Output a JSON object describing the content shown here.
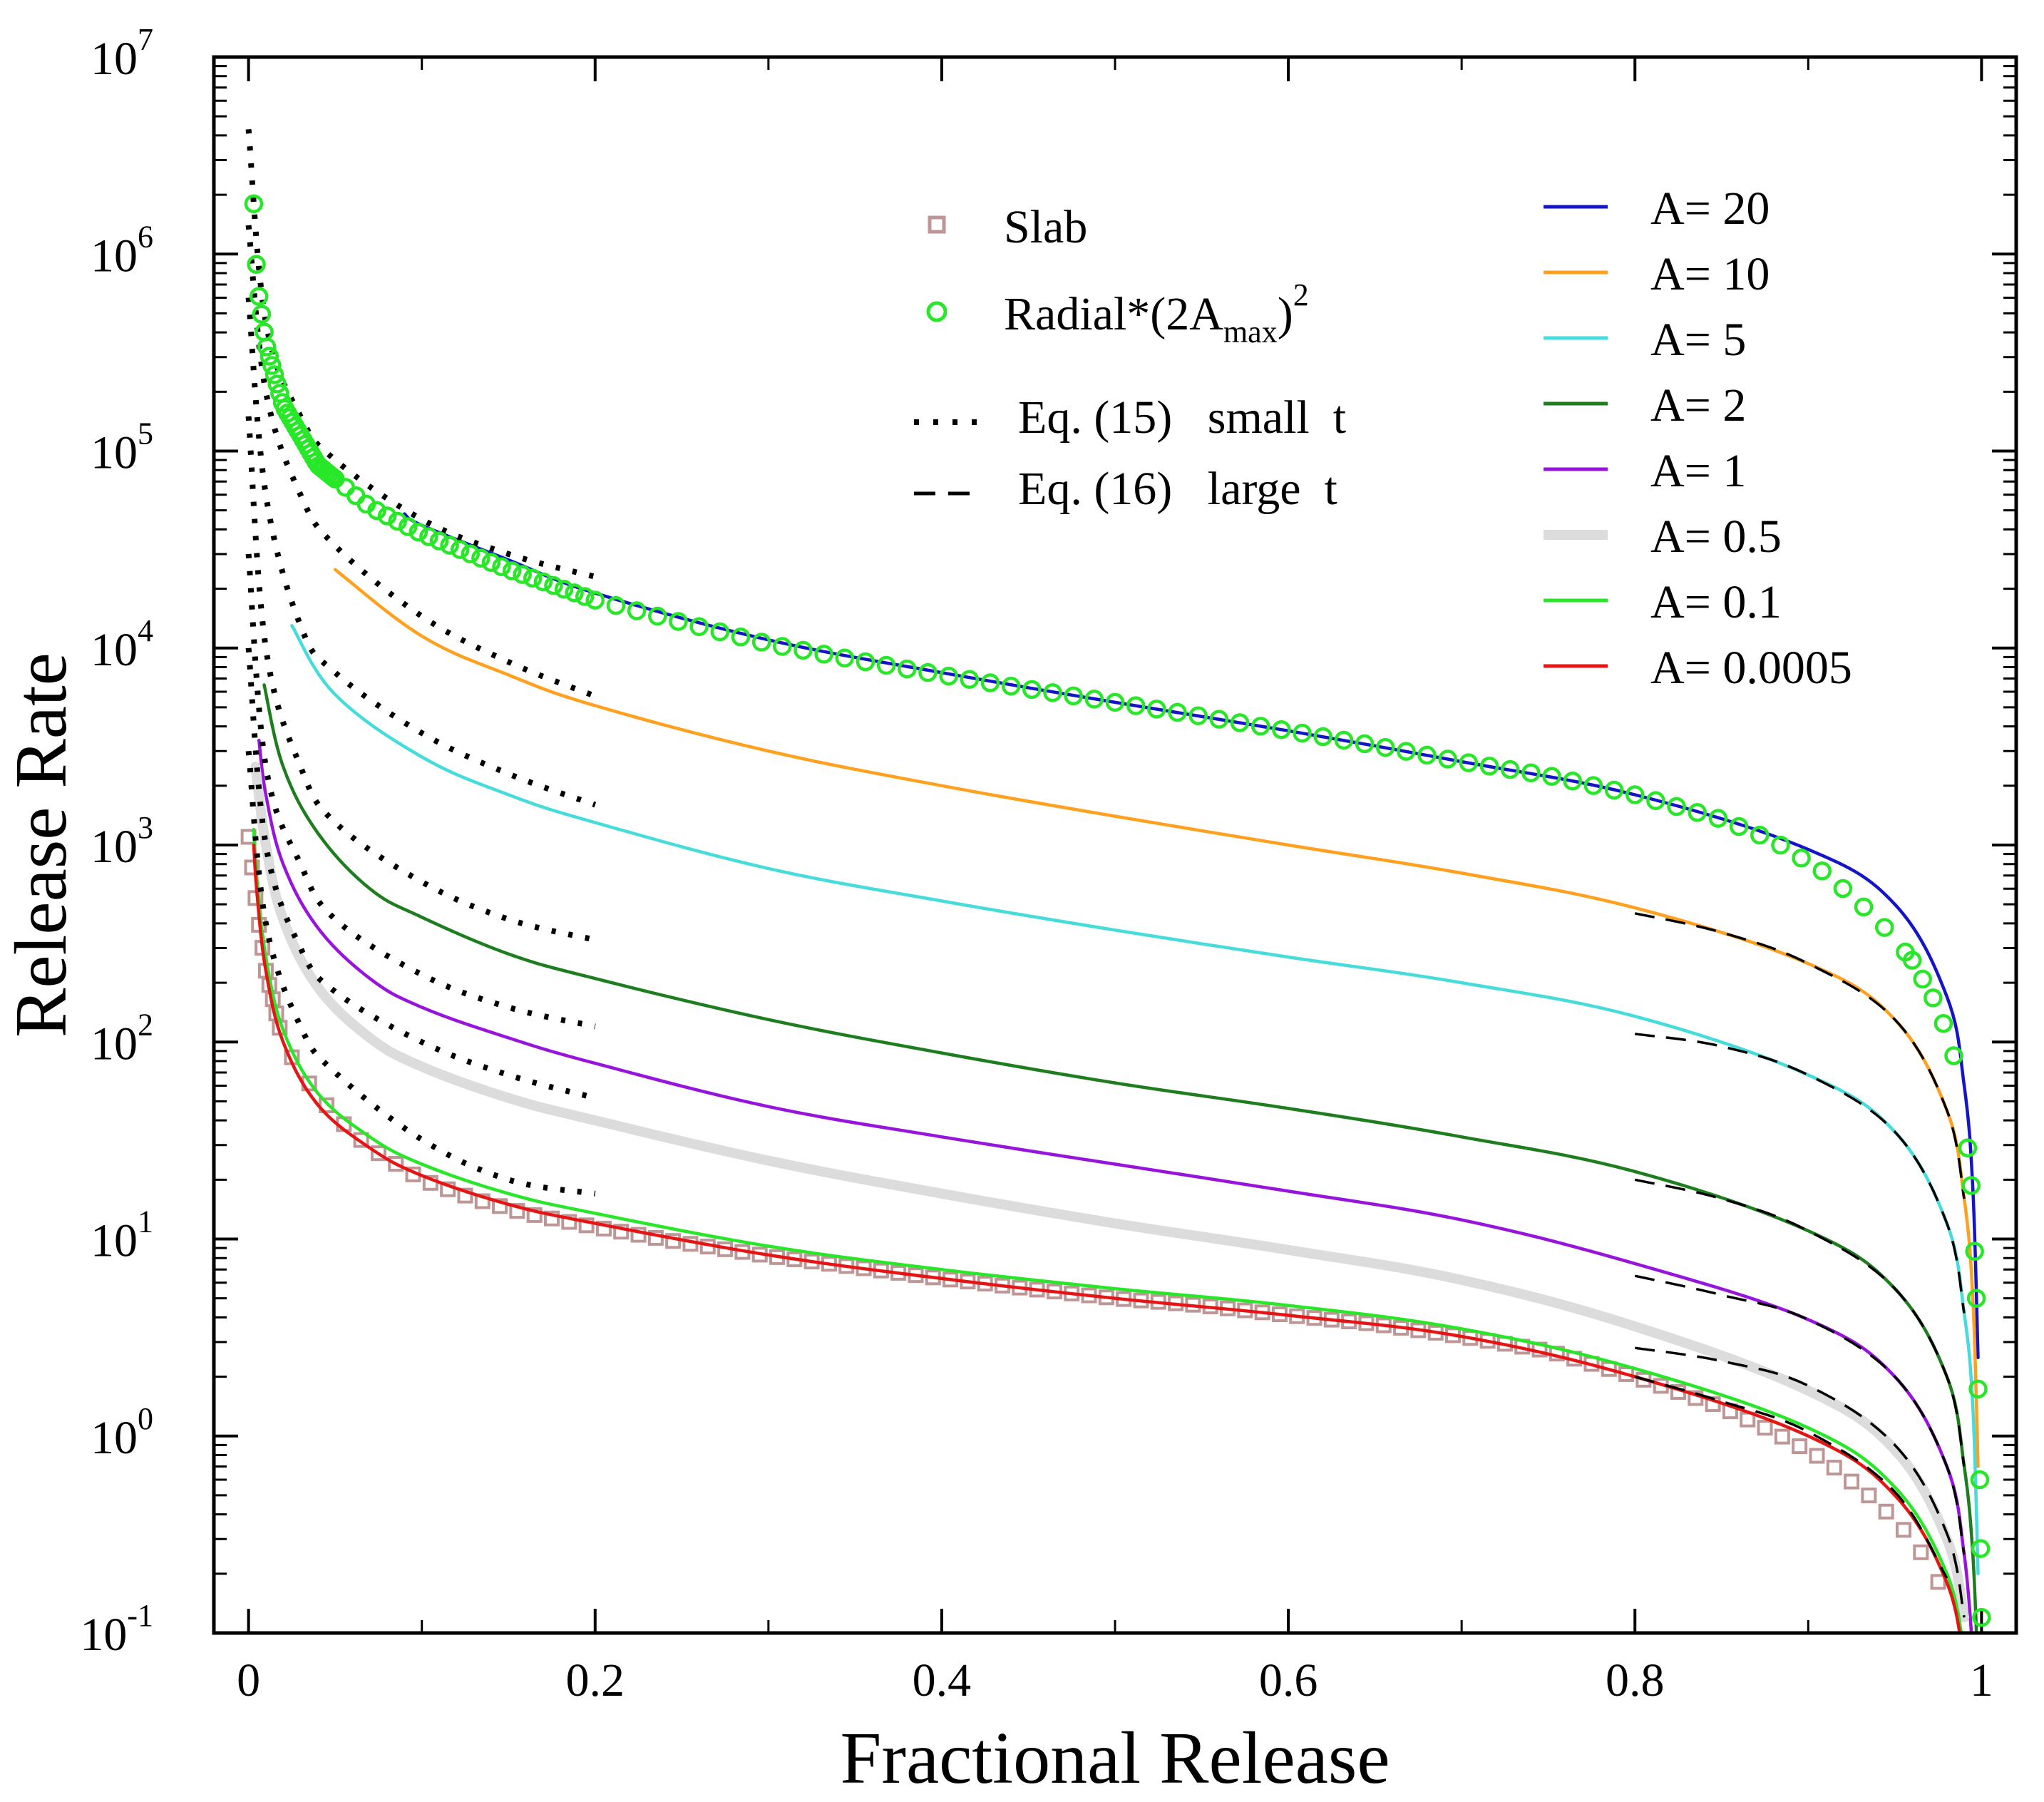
{
  "chart_data": {
    "type": "line",
    "title": "",
    "xlabel": "Fractional Release",
    "ylabel": "Release Rate",
    "xlim": [
      -0.02,
      1.02
    ],
    "ylim_log10": [
      -1,
      7
    ],
    "y_scale": "log",
    "x_ticks": [
      "0",
      "0.2",
      "0.4",
      "0.6",
      "0.8",
      "1"
    ],
    "x_tick_values": [
      0,
      0.2,
      0.4,
      0.6,
      0.8,
      1
    ],
    "y_ticks": [
      {
        "base": "10",
        "exp": "-1",
        "value": -1
      },
      {
        "base": "10",
        "exp": "0",
        "value": 0
      },
      {
        "base": "10",
        "exp": "1",
        "value": 1
      },
      {
        "base": "10",
        "exp": "2",
        "value": 2
      },
      {
        "base": "10",
        "exp": "3",
        "value": 3
      },
      {
        "base": "10",
        "exp": "4",
        "value": 4
      },
      {
        "base": "10",
        "exp": "5",
        "value": 5
      },
      {
        "base": "10",
        "exp": "6",
        "value": 6
      },
      {
        "base": "10",
        "exp": "7",
        "value": 7
      }
    ],
    "series": [
      {
        "name": "A= 20",
        "A": 20,
        "color": "#1414c8",
        "x": [
          0.09,
          0.1,
          0.15,
          0.2,
          0.3,
          0.4,
          0.5,
          0.6,
          0.7,
          0.8,
          0.9,
          0.95,
          0.98,
          0.99,
          0.995,
          0.998
        ],
        "y": [
          48000,
          42000,
          28000,
          19000,
          11000,
          7500,
          5300,
          3800,
          2650,
          1800,
          950,
          500,
          170,
          60,
          18,
          2.5
        ]
      },
      {
        "name": "A= 10",
        "A": 10,
        "color": "#ffa01e",
        "x": [
          0.05,
          0.1,
          0.15,
          0.2,
          0.3,
          0.4,
          0.5,
          0.6,
          0.7,
          0.8,
          0.9,
          0.95,
          0.98,
          0.99,
          0.995,
          0.998
        ],
        "y": [
          25000,
          11500,
          7300,
          5100,
          3000,
          2000,
          1400,
          1000,
          720,
          480,
          250,
          130,
          45,
          16,
          5,
          0.7
        ]
      },
      {
        "name": "A= 5",
        "A": 5,
        "color": "#46dcdc",
        "x": [
          0.025,
          0.05,
          0.1,
          0.15,
          0.2,
          0.3,
          0.4,
          0.5,
          0.6,
          0.7,
          0.8,
          0.9,
          0.95,
          0.98,
          0.99,
          0.995,
          0.998
        ],
        "y": [
          13000,
          5800,
          2800,
          1800,
          1300,
          760,
          520,
          370,
          270,
          200,
          135,
          68,
          35,
          12,
          4.2,
          1.4,
          0.2
        ]
      },
      {
        "name": "A= 2",
        "A": 2,
        "color": "#1e7d1e",
        "x": [
          0.009,
          0.02,
          0.04,
          0.07,
          0.1,
          0.15,
          0.2,
          0.3,
          0.4,
          0.5,
          0.6,
          0.7,
          0.8,
          0.9,
          0.95,
          0.98,
          0.99,
          0.995,
          0.998
        ],
        "y": [
          6500,
          2500,
          1150,
          600,
          430,
          280,
          210,
          130,
          88,
          62,
          46,
          33,
          22,
          11,
          5.6,
          2,
          0.7,
          0.25,
          0.06
        ]
      },
      {
        "name": "A= 1",
        "A": 1,
        "color": "#9614dc",
        "x": [
          0.006,
          0.01,
          0.02,
          0.04,
          0.07,
          0.1,
          0.15,
          0.2,
          0.3,
          0.4,
          0.5,
          0.6,
          0.7,
          0.8,
          0.9,
          0.95,
          0.98,
          0.99,
          0.995
        ],
        "y": [
          3400,
          1800,
          800,
          380,
          210,
          150,
          105,
          78,
          47,
          33,
          24,
          17.5,
          12.5,
          7.5,
          3.9,
          2,
          0.7,
          0.25,
          0.08
        ]
      },
      {
        "name": "A= 0.5",
        "A": 0.5,
        "color": "#dcdcdc",
        "x": [
          0.004,
          0.01,
          0.02,
          0.04,
          0.07,
          0.1,
          0.15,
          0.2,
          0.3,
          0.4,
          0.5,
          0.6,
          0.7,
          0.8,
          0.9,
          0.95,
          0.98,
          0.99
        ],
        "y": [
          2500,
          1000,
          420,
          190,
          105,
          75,
          52,
          40,
          25,
          17,
          12,
          8.8,
          6.2,
          3.6,
          1.7,
          0.85,
          0.3,
          0.12
        ]
      },
      {
        "name": "A= 0.1",
        "A": 0.1,
        "color": "#28e628",
        "x": [
          0.003,
          0.005,
          0.01,
          0.02,
          0.04,
          0.07,
          0.1,
          0.15,
          0.2,
          0.3,
          0.4,
          0.5,
          0.6,
          0.7,
          0.8,
          0.9,
          0.95,
          0.98,
          0.99
        ],
        "y": [
          1200,
          650,
          270,
          115,
          55,
          33,
          24,
          17,
          13.5,
          9.2,
          7,
          5.6,
          4.6,
          3.5,
          2.2,
          1.1,
          0.55,
          0.2,
          0.08
        ]
      },
      {
        "name": "A= 0.0005",
        "A": 0.0005,
        "color": "#e61414",
        "x": [
          0.003,
          0.005,
          0.01,
          0.02,
          0.04,
          0.07,
          0.1,
          0.15,
          0.2,
          0.3,
          0.4,
          0.5,
          0.6,
          0.7,
          0.8,
          0.9,
          0.95,
          0.98,
          0.99
        ],
        "y": [
          1000,
          550,
          230,
          100,
          48,
          29,
          21,
          15,
          12,
          8.3,
          6.3,
          5,
          4.1,
          3.2,
          2,
          1,
          0.5,
          0.18,
          0.07
        ]
      }
    ],
    "markers": [
      {
        "name": "Slab",
        "marker": "square",
        "color": "#be9696",
        "x": [
          0.0,
          0.005,
          0.01,
          0.02,
          0.03,
          0.05,
          0.07,
          0.1,
          0.13,
          0.16,
          0.2,
          0.25,
          0.3,
          0.35,
          0.4,
          0.45,
          0.5,
          0.55,
          0.6,
          0.65,
          0.7,
          0.75,
          0.8,
          0.85,
          0.88,
          0.91,
          0.94,
          0.96,
          0.97,
          0.98,
          0.985
        ],
        "y": [
          1100,
          450,
          230,
          100,
          70,
          42,
          29,
          20,
          16,
          13.5,
          11.5,
          9.6,
          8.2,
          7.2,
          6.3,
          5.6,
          5,
          4.6,
          4.1,
          3.7,
          3.2,
          2.7,
          2,
          1.4,
          1.05,
          0.75,
          0.46,
          0.3,
          0.22,
          0.15,
          0.11
        ]
      },
      {
        "name": "Radial*(2Amax)^2",
        "marker": "circle",
        "color": "#28e628",
        "x": [
          0.003,
          0.005,
          0.01,
          0.02,
          0.04,
          0.07,
          0.1,
          0.15,
          0.2,
          0.25,
          0.3,
          0.35,
          0.4,
          0.45,
          0.5,
          0.55,
          0.6,
          0.65,
          0.7,
          0.75,
          0.8,
          0.85,
          0.88,
          0.91,
          0.94,
          0.96,
          0.975,
          0.985,
          0.99,
          0.995,
          0.997,
          0.999,
          1.0
        ],
        "y": [
          1800000,
          700000,
          350000,
          170000,
          85000,
          52000,
          38000,
          25000,
          17500,
          13500,
          10500,
          8700,
          7300,
          6200,
          5300,
          4500,
          3800,
          3200,
          2650,
          2250,
          1800,
          1350,
          1050,
          720,
          420,
          260,
          150,
          80,
          45,
          15,
          5,
          0.6,
          0.12
        ]
      }
    ],
    "approximations": [
      {
        "name": "Eq. (15)   small  t",
        "style": "dotted",
        "curves": [
          {
            "x": [
              0.0,
              0.01,
              0.03,
              0.05,
              0.1,
              0.15,
              0.2
            ],
            "y": [
              4300000,
              450000,
              150000,
              90000,
              45000,
              30000,
              23000
            ]
          },
          {
            "x": [
              0.0,
              0.01,
              0.03,
              0.05,
              0.1,
              0.15,
              0.2
            ],
            "y": [
              1400000,
              200000,
              60000,
              33000,
              14500,
              8500,
              5700
            ]
          },
          {
            "x": [
              0.0,
              0.01,
              0.03,
              0.05,
              0.1,
              0.15,
              0.2
            ],
            "y": [
              600000,
              60000,
              13000,
              7500,
              3700,
              2300,
              1600
            ]
          },
          {
            "x": [
              0.0,
              0.01,
              0.03,
              0.05,
              0.1,
              0.15,
              0.2
            ],
            "y": [
              150000,
              10000,
              2500,
              1300,
              650,
              420,
              330
            ]
          },
          {
            "x": [
              0.0,
              0.01,
              0.03,
              0.05,
              0.1,
              0.15,
              0.2
            ],
            "y": [
              30000,
              2500,
              800,
              420,
              220,
              150,
              120
            ]
          },
          {
            "x": [
              0.0,
              0.01,
              0.03,
              0.05,
              0.1,
              0.15,
              0.2
            ],
            "y": [
              10000,
              1000,
              300,
              180,
              100,
              68,
              52
            ]
          },
          {
            "x": [
              0.0,
              0.01,
              0.03,
              0.05,
              0.1,
              0.15,
              0.2
            ],
            "y": [
              3000,
              400,
              120,
              70,
              32,
              20,
              17
            ]
          }
        ]
      },
      {
        "name": "Eq. (16)   large  t",
        "style": "dashed",
        "curves": [
          {
            "x": [
              0.8,
              0.85,
              0.9,
              0.95,
              0.98,
              0.99
            ],
            "y": [
              450,
              360,
              250,
              130,
              45,
              16
            ]
          },
          {
            "x": [
              0.8,
              0.85,
              0.9,
              0.95,
              0.98,
              0.99
            ],
            "y": [
              110,
              95,
              68,
              35,
              12,
              4.2
            ]
          },
          {
            "x": [
              0.8,
              0.85,
              0.9,
              0.95,
              0.98,
              0.99
            ],
            "y": [
              20,
              16,
              11,
              5.6,
              2,
              0.7
            ]
          },
          {
            "x": [
              0.8,
              0.85,
              0.9,
              0.95,
              0.98,
              0.99
            ],
            "y": [
              6.5,
              5.2,
              3.9,
              2,
              0.7,
              0.25
            ]
          },
          {
            "x": [
              0.8,
              0.85,
              0.9,
              0.95,
              0.98,
              0.99
            ],
            "y": [
              2.8,
              2.4,
              1.8,
              0.9,
              0.32,
              0.12
            ]
          },
          {
            "x": [
              0.8,
              0.85,
              0.9,
              0.95,
              0.98
            ],
            "y": [
              2.0,
              1.5,
              1.05,
              0.52,
              0.19
            ]
          }
        ]
      }
    ]
  },
  "legend_left": {
    "slab": "Slab",
    "radial_prefix": "Radial*(2A",
    "radial_sub": "max",
    "radial_close": ")",
    "radial_sup": "2",
    "eq15": "Eq. (15)   small  t",
    "eq16": "Eq. (16)   large  t"
  }
}
